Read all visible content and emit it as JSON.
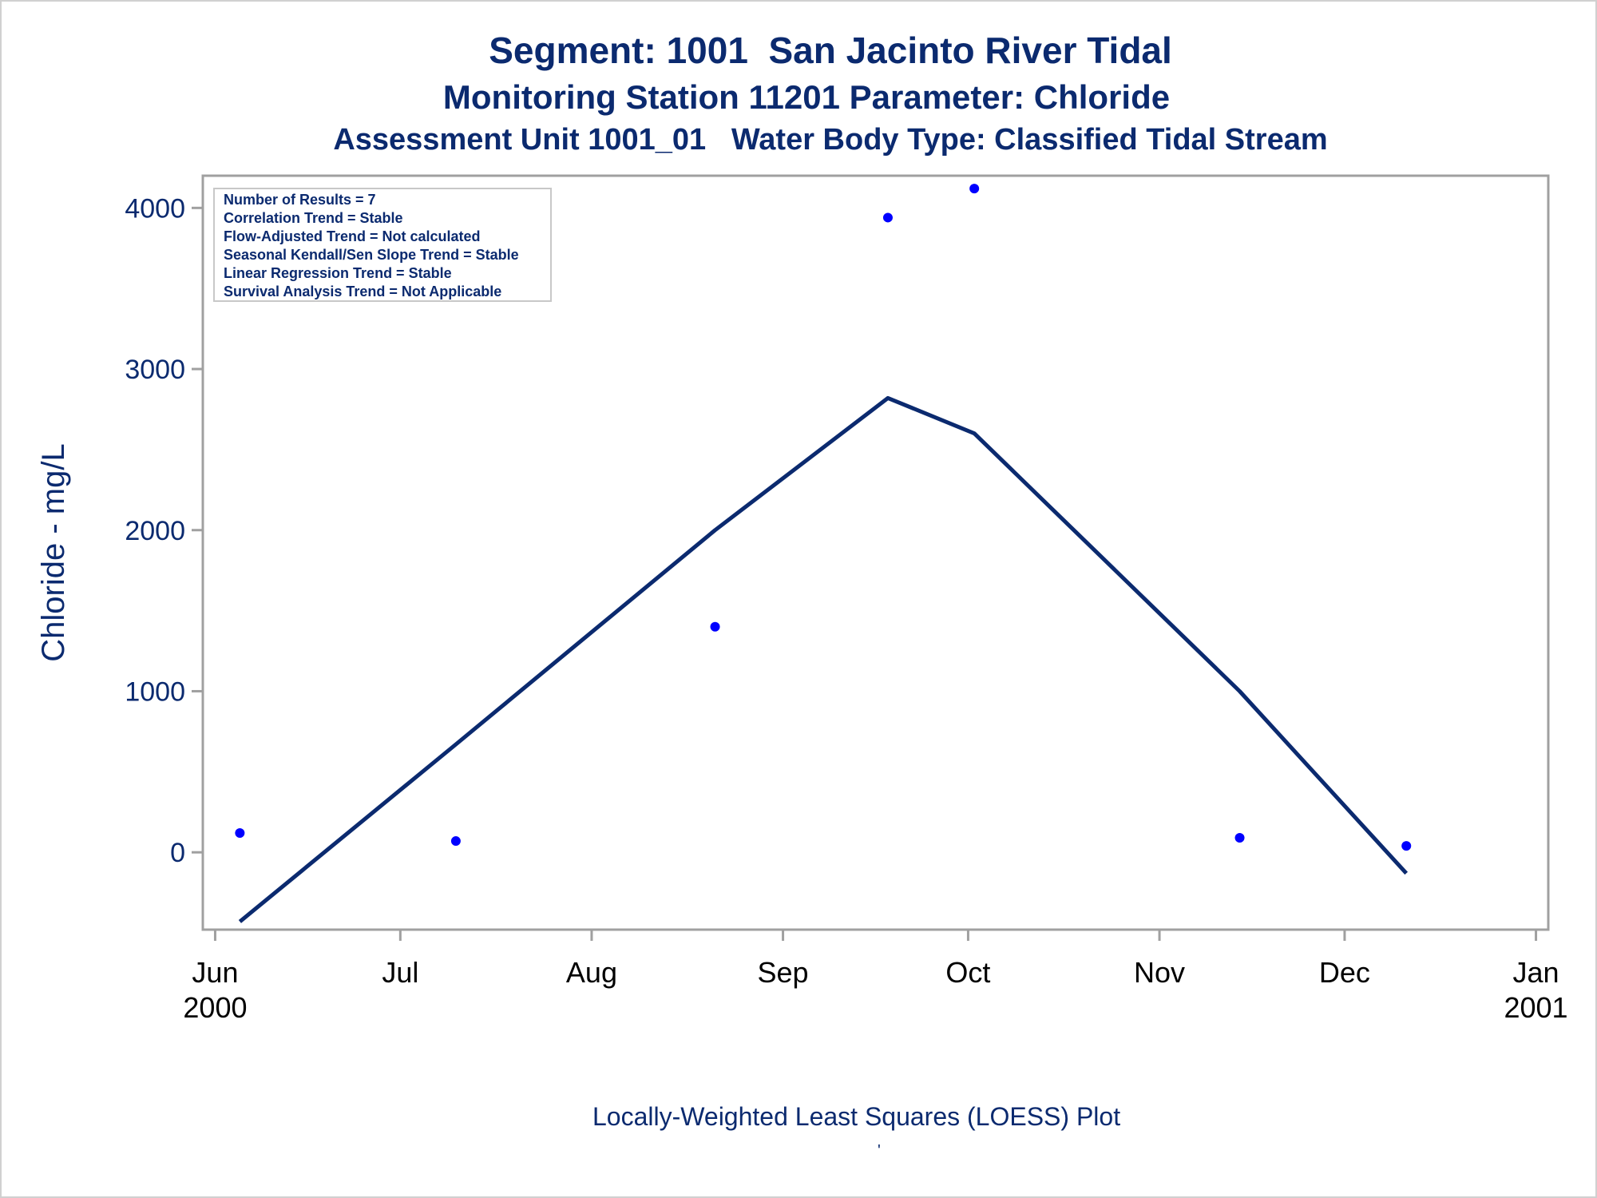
{
  "titles": {
    "line1": "Segment: 1001  San Jacinto River Tidal",
    "line2": "Monitoring Station 11201 Parameter: Chloride",
    "line3": "Assessment Unit 1001_01   Water Body Type: Classified Tidal Stream"
  },
  "footnote": "Locally-Weighted Least Squares (LOESS) Plot",
  "footnote_mark": "'",
  "stats_box": [
    "Number of Results = 7",
    "Correlation Trend = Stable",
    "Flow-Adjusted Trend = Not calculated",
    "Seasonal Kendall/Sen Slope Trend = Stable",
    "Linear Regression Trend = Stable",
    "Survival Analysis Trend = Not Applicable"
  ],
  "colors": {
    "text": "#0b2a6f",
    "points": "#0000ff",
    "line": "#0b2a6f",
    "axis": "#a0a0a0"
  },
  "chart_data": {
    "type": "scatter",
    "title": "Segment: 1001  San Jacinto River Tidal",
    "xlabel": "",
    "ylabel": "Chloride - mg/L",
    "x_ticks": [
      {
        "date": "2000-06-01",
        "label": "Jun",
        "sublabel": "2000"
      },
      {
        "date": "2000-07-01",
        "label": "Jul",
        "sublabel": ""
      },
      {
        "date": "2000-08-01",
        "label": "Aug",
        "sublabel": ""
      },
      {
        "date": "2000-09-01",
        "label": "Sep",
        "sublabel": ""
      },
      {
        "date": "2000-10-01",
        "label": "Oct",
        "sublabel": ""
      },
      {
        "date": "2000-11-01",
        "label": "Nov",
        "sublabel": ""
      },
      {
        "date": "2000-12-01",
        "label": "Dec",
        "sublabel": ""
      },
      {
        "date": "2001-01-01",
        "label": "Jan",
        "sublabel": "2001"
      }
    ],
    "xlim": [
      "2000-05-30",
      "2001-01-03"
    ],
    "y_ticks": [
      0,
      1000,
      2000,
      3000,
      4000
    ],
    "ylim": [
      -480,
      4200
    ],
    "grid": false,
    "series": [
      {
        "kind": "points",
        "points": [
          {
            "x": "2000-06-05",
            "y": 120
          },
          {
            "x": "2000-07-10",
            "y": 70
          },
          {
            "x": "2000-08-21",
            "y": 1400
          },
          {
            "x": "2000-09-18",
            "y": 3940
          },
          {
            "x": "2000-10-02",
            "y": 4120
          },
          {
            "x": "2000-11-14",
            "y": 90
          },
          {
            "x": "2000-12-11",
            "y": 40
          }
        ]
      },
      {
        "kind": "line",
        "points": [
          {
            "x": "2000-06-05",
            "y": -430
          },
          {
            "x": "2000-07-10",
            "y": 670
          },
          {
            "x": "2000-08-21",
            "y": 2000
          },
          {
            "x": "2000-09-18",
            "y": 2820
          },
          {
            "x": "2000-10-02",
            "y": 2600
          },
          {
            "x": "2000-11-14",
            "y": 1000
          },
          {
            "x": "2000-12-11",
            "y": -130
          }
        ]
      }
    ]
  }
}
